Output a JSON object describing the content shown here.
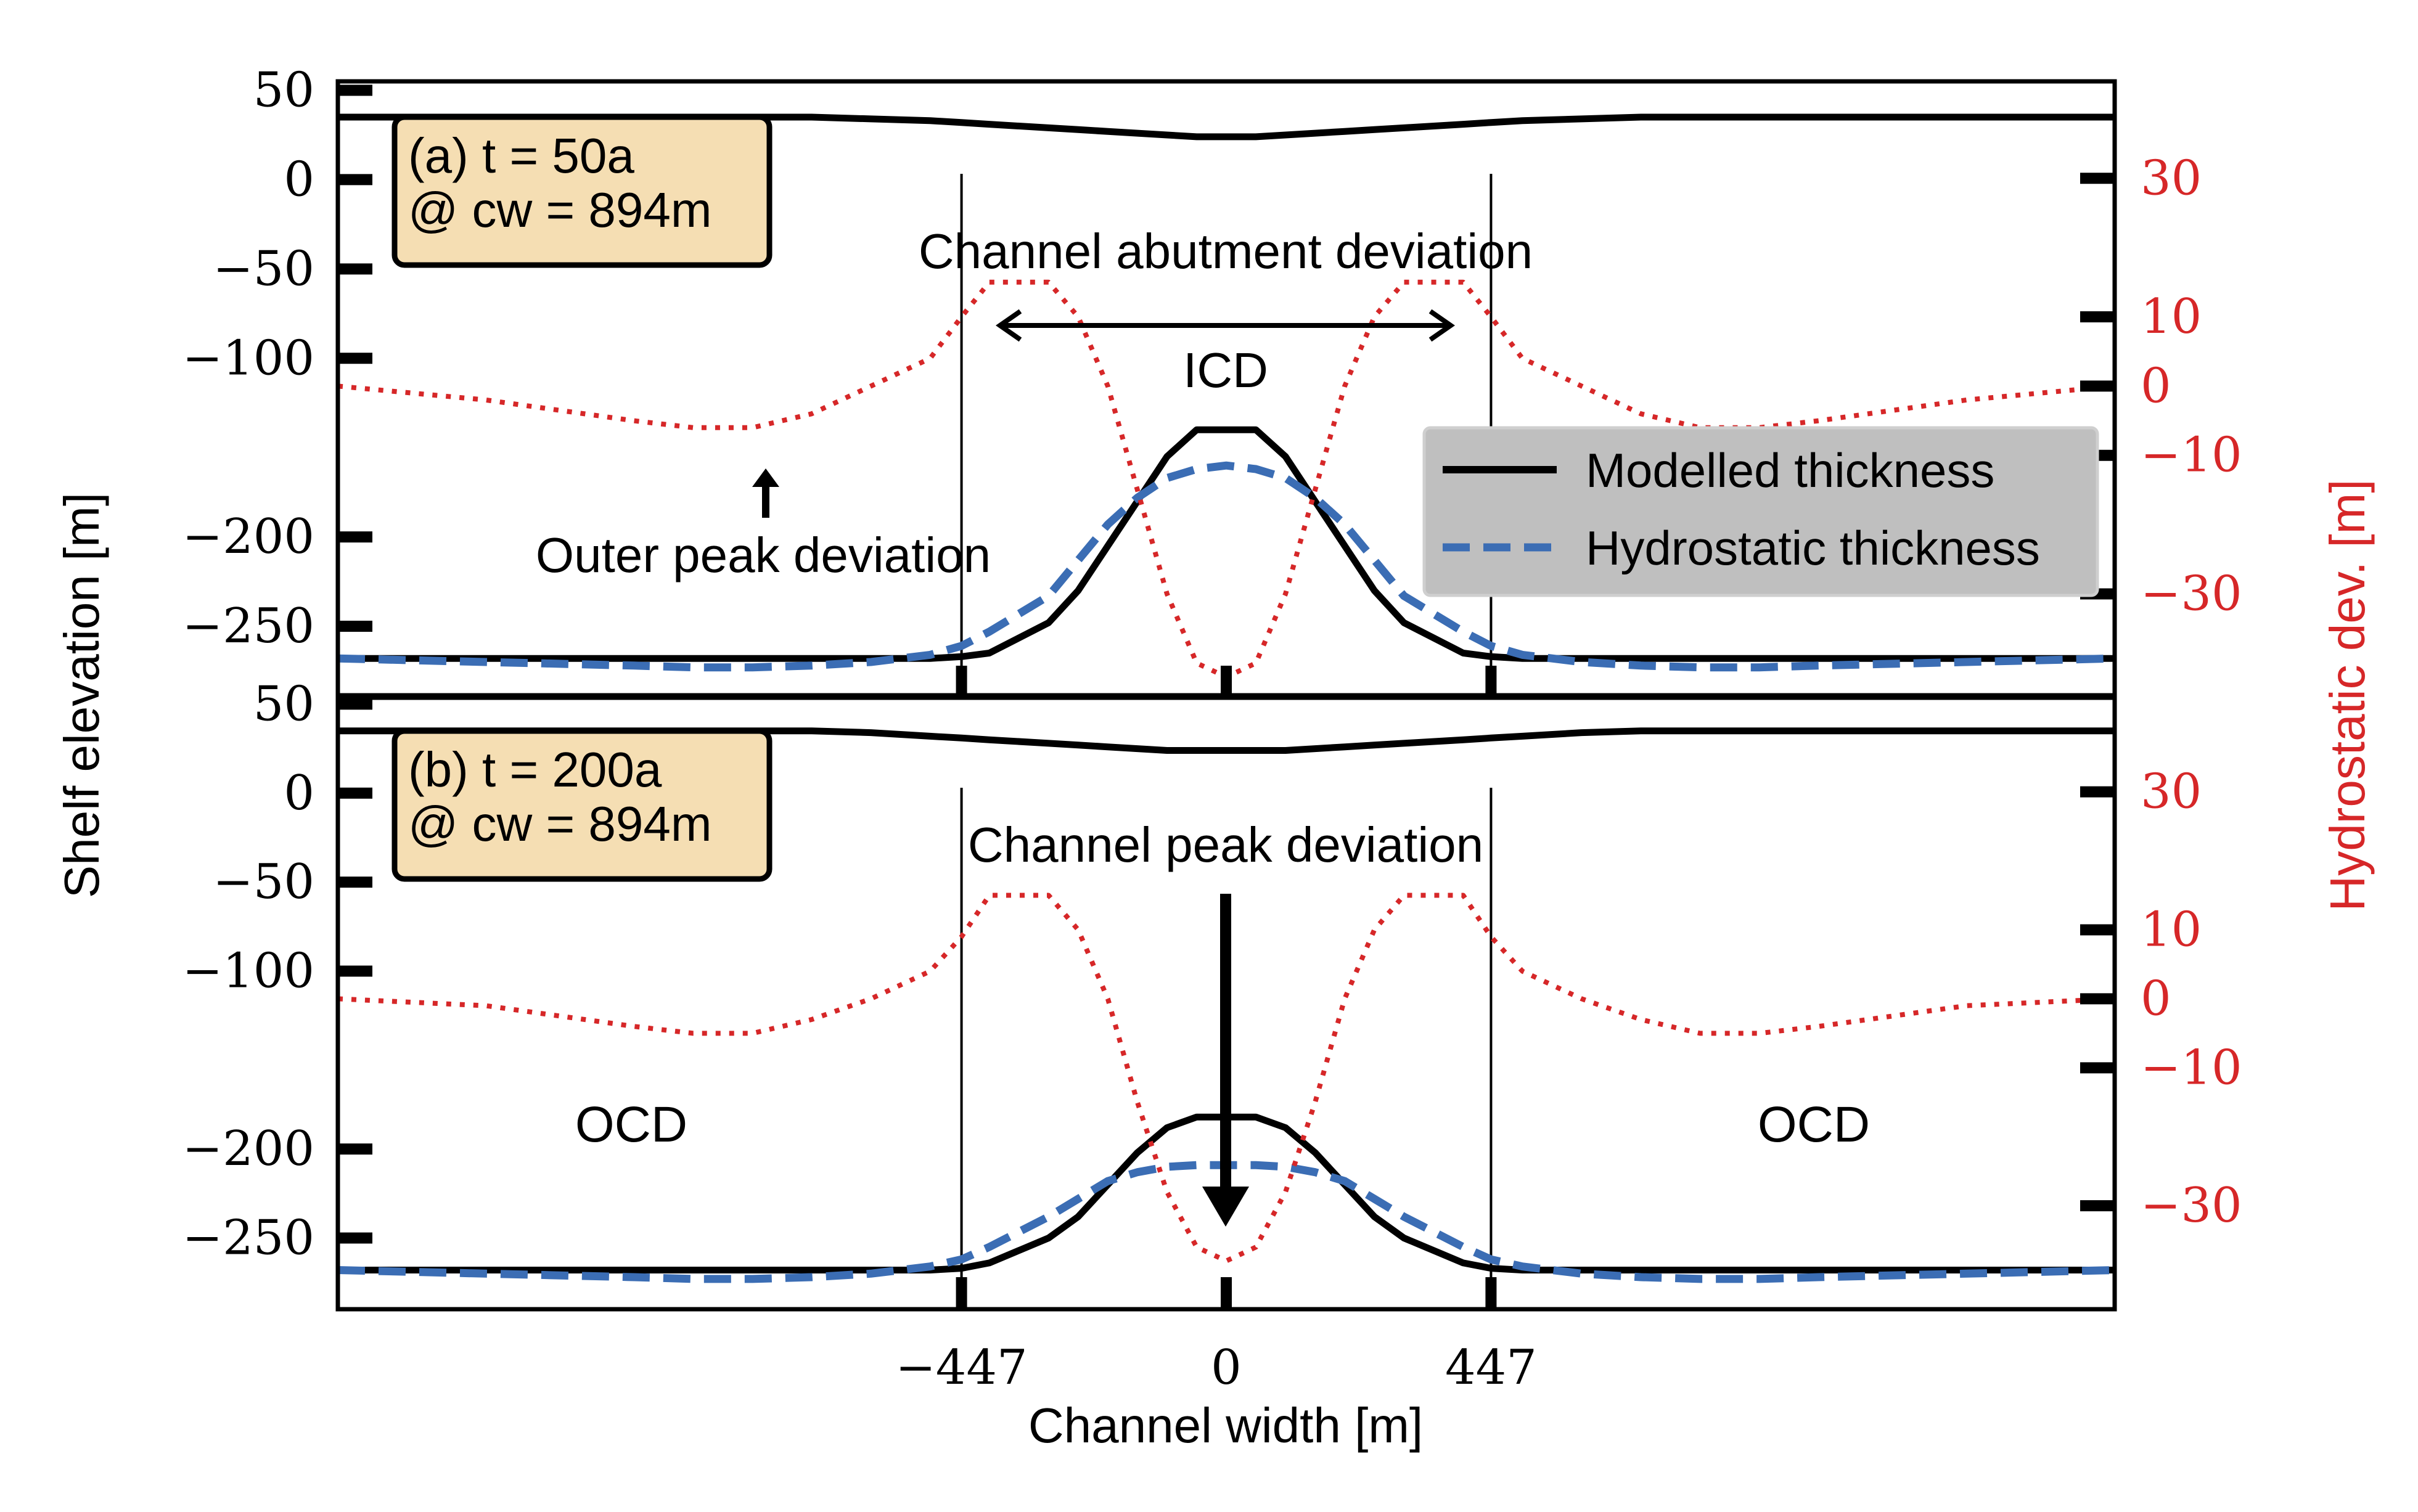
{
  "chart_data": [
    {
      "panel": "a",
      "type": "line",
      "panel_label_line1": "(a) t = 50a",
      "panel_label_line2": "@ cw = 894m",
      "left_ylim": [
        -290,
        55
      ],
      "right_ylim": [
        -45,
        44
      ],
      "xlim": [
        -1500,
        1500
      ],
      "x": [
        -1500,
        -1250,
        -1000,
        -900,
        -800,
        -700,
        -600,
        -500,
        -447,
        -400,
        -300,
        -250,
        -200,
        -150,
        -100,
        -50,
        0,
        50,
        100,
        150,
        200,
        250,
        300,
        400,
        447,
        500,
        600,
        700,
        800,
        900,
        1000,
        1250,
        1500
      ],
      "series": [
        {
          "name": "Modelled thickness",
          "axis": "left",
          "style": "solid",
          "color": "#000000",
          "values": [
            -268,
            -268,
            -268,
            -268,
            -268,
            -268,
            -268,
            -268,
            -267,
            -265,
            -248,
            -230,
            -205,
            -180,
            -155,
            -140,
            -140,
            -140,
            -155,
            -180,
            -205,
            -230,
            -248,
            -265,
            -267,
            -268,
            -268,
            -268,
            -268,
            -268,
            -268,
            -268,
            -268
          ]
        },
        {
          "name": "Hydrostatic thickness",
          "axis": "left",
          "style": "dashed",
          "color": "#3b6db4",
          "values": [
            -268,
            -270,
            -272,
            -273,
            -273,
            -272,
            -270,
            -266,
            -261,
            -253,
            -233,
            -213,
            -193,
            -178,
            -167,
            -162,
            -160,
            -162,
            -167,
            -178,
            -193,
            -213,
            -233,
            -253,
            -261,
            -266,
            -270,
            -272,
            -273,
            -273,
            -272,
            -270,
            -268
          ]
        },
        {
          "name": "",
          "axis": "right",
          "style": "dotted",
          "color": "#d62728",
          "values": [
            0,
            -2,
            -5,
            -6,
            -6,
            -4,
            0,
            4,
            10,
            15,
            15,
            10,
            0,
            -15,
            -30,
            -40,
            -42,
            -40,
            -30,
            -15,
            0,
            10,
            15,
            15,
            10,
            4,
            0,
            -4,
            -6,
            -6,
            -5,
            -2,
            0
          ]
        },
        {
          "name": "",
          "axis": "left",
          "style": "solid",
          "color": "#000000",
          "values": [
            35,
            35,
            35,
            35,
            35,
            35,
            34,
            33,
            32,
            31,
            29,
            28,
            27,
            26,
            25,
            24,
            24,
            24,
            25,
            26,
            27,
            28,
            29,
            31,
            32,
            33,
            34,
            35,
            35,
            35,
            35,
            35,
            35
          ]
        }
      ],
      "annotations": [
        "Channel abutment deviation",
        "ICD",
        "Outer peak deviation"
      ]
    },
    {
      "panel": "b",
      "type": "line",
      "panel_label_line1": "(b) t = 200a",
      "panel_label_line2": "@ cw = 894m",
      "left_ylim": [
        -290,
        55
      ],
      "right_ylim": [
        -45,
        44
      ],
      "xlim": [
        -1500,
        1500
      ],
      "x": [
        -1500,
        -1250,
        -1000,
        -900,
        -800,
        -700,
        -600,
        -500,
        -447,
        -400,
        -300,
        -250,
        -200,
        -150,
        -100,
        -50,
        0,
        50,
        100,
        150,
        200,
        250,
        300,
        400,
        447,
        500,
        600,
        700,
        800,
        900,
        1000,
        1250,
        1500
      ],
      "series": [
        {
          "name": "Modelled thickness",
          "axis": "left",
          "style": "solid",
          "color": "#000000",
          "values": [
            -268,
            -268,
            -268,
            -268,
            -268,
            -268,
            -268,
            -268,
            -267,
            -264,
            -250,
            -238,
            -220,
            -202,
            -188,
            -182,
            -182,
            -182,
            -188,
            -202,
            -220,
            -238,
            -250,
            -264,
            -267,
            -268,
            -268,
            -268,
            -268,
            -268,
            -268,
            -268,
            -268
          ]
        },
        {
          "name": "Hydrostatic thickness",
          "axis": "left",
          "style": "dashed",
          "color": "#3b6db4",
          "values": [
            -268,
            -270,
            -272,
            -273,
            -273,
            -272,
            -270,
            -266,
            -262,
            -255,
            -238,
            -228,
            -218,
            -213,
            -210,
            -209,
            -209,
            -209,
            -210,
            -213,
            -218,
            -228,
            -238,
            -255,
            -262,
            -266,
            -270,
            -272,
            -273,
            -273,
            -272,
            -270,
            -268
          ]
        },
        {
          "name": "",
          "axis": "right",
          "style": "dotted",
          "color": "#d62728",
          "values": [
            0,
            -1,
            -4,
            -5,
            -5,
            -3,
            0,
            4,
            9,
            15,
            15,
            10,
            0,
            -15,
            -28,
            -36,
            -38,
            -36,
            -28,
            -15,
            0,
            10,
            15,
            15,
            9,
            4,
            0,
            -3,
            -5,
            -5,
            -4,
            -1,
            0
          ]
        },
        {
          "name": "",
          "axis": "left",
          "style": "solid",
          "color": "#000000",
          "values": [
            35,
            35,
            35,
            35,
            35,
            35,
            34,
            32,
            31,
            30,
            28,
            27,
            26,
            25,
            24,
            24,
            24,
            24,
            24,
            25,
            26,
            27,
            28,
            30,
            31,
            32,
            34,
            35,
            35,
            35,
            35,
            35,
            35
          ]
        }
      ],
      "annotations": [
        "Channel peak deviation",
        "OCD",
        "OCD"
      ]
    }
  ],
  "axes": {
    "left_label": "Shelf elevation [m]",
    "right_label": "Hydrostatic dev. [m]",
    "xlabel": "Channel width [m]",
    "left_ticks": [
      50,
      0,
      -50,
      -100,
      -200,
      -250
    ],
    "left_tick_labels": [
      "50",
      "0",
      "−50",
      "−100",
      "−200",
      "−250"
    ],
    "right_ticks": [
      30,
      10,
      0,
      -10,
      -30
    ],
    "right_tick_labels": [
      "30",
      "10",
      "0",
      "−10",
      "−30"
    ],
    "x_ticks": [
      -447,
      0,
      447
    ],
    "x_tick_labels": [
      "−447",
      "0",
      "447"
    ]
  },
  "legend": {
    "items": [
      "Modelled thickness",
      "Hydrostatic thickness"
    ],
    "placement": "right"
  },
  "colors": {
    "modelled": "#000000",
    "hydrostatic": "#3b6db4",
    "deviation": "#d62728",
    "panel_label_bg": "#f5deb3",
    "legend_bg": "#bfbfbf"
  }
}
